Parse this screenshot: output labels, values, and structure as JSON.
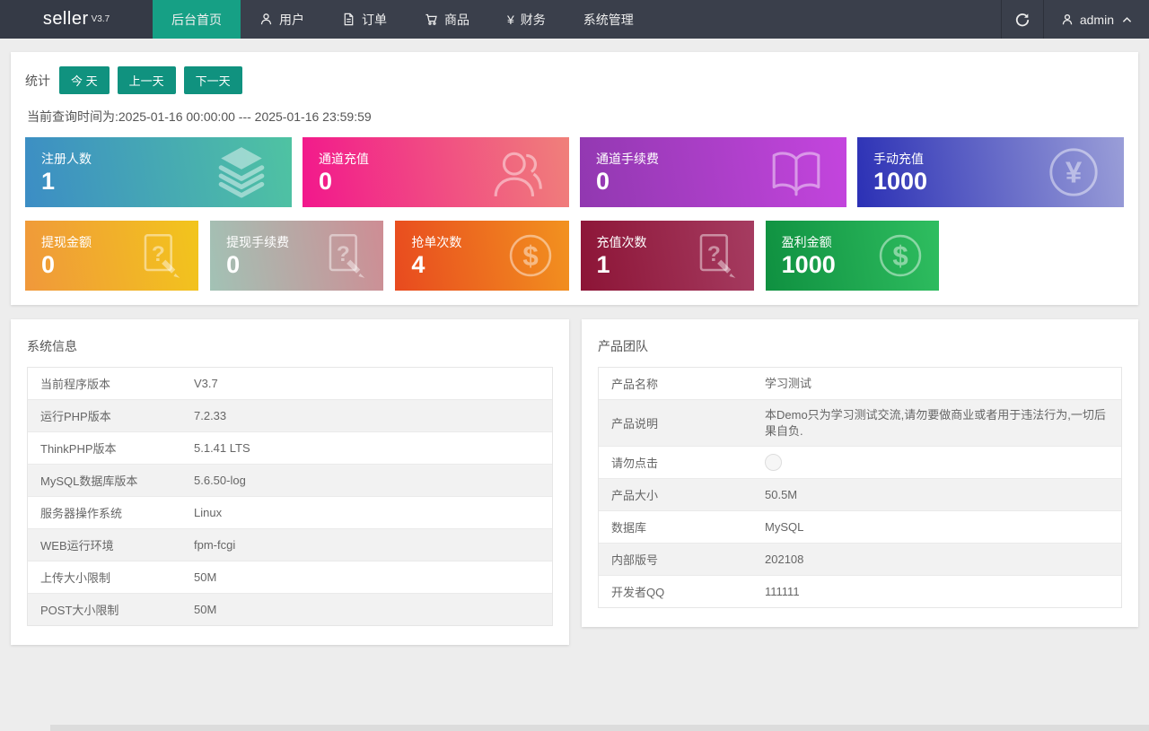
{
  "navbar": {
    "logo": "seller",
    "logo_version": "V3.7",
    "menu": [
      {
        "key": "home",
        "label": "后台首页",
        "icon": null,
        "active": true
      },
      {
        "key": "users",
        "label": "用户",
        "icon": "user",
        "active": false
      },
      {
        "key": "orders",
        "label": "订单",
        "icon": "document",
        "active": false
      },
      {
        "key": "goods",
        "label": "商品",
        "icon": "cart",
        "active": false
      },
      {
        "key": "finance",
        "label": "财务",
        "icon": "yen",
        "active": false
      },
      {
        "key": "system",
        "label": "系统管理",
        "icon": null,
        "active": false
      }
    ],
    "username": "admin"
  },
  "stats": {
    "label": "统计",
    "buttons": [
      {
        "key": "today",
        "label": "今 天"
      },
      {
        "key": "prev-day",
        "label": "上一天"
      },
      {
        "key": "next-day",
        "label": "下一天"
      }
    ],
    "query_time": "当前查询时间为:2025-01-16 00:00:00 --- 2025-01-16 23:59:59",
    "cards_row1": [
      {
        "key": "register-count",
        "label": "注册人数",
        "value": "1",
        "icon": "layers",
        "gradient": [
          "#3C8DC5",
          "#4FC3A2"
        ]
      },
      {
        "key": "channel-recharge",
        "label": "通道充值",
        "value": "0",
        "icon": "users",
        "gradient": [
          "#F2178C",
          "#F0807A"
        ]
      },
      {
        "key": "channel-fee",
        "label": "通道手续费",
        "value": "0",
        "icon": "book",
        "gradient": [
          "#9138B0",
          "#C445DE"
        ]
      },
      {
        "key": "manual-recharge",
        "label": "手动充值",
        "value": "1000",
        "icon": "yen-circle",
        "gradient": [
          "#2B30B5",
          "#9A9ED8"
        ]
      }
    ],
    "cards_row2": [
      {
        "key": "withdraw-amount",
        "label": "提现金额",
        "value": "0",
        "icon": "file-question",
        "gradient": [
          "#F0983B",
          "#F2C51C"
        ]
      },
      {
        "key": "withdraw-fee",
        "label": "提现手续费",
        "value": "0",
        "icon": "file-question",
        "gradient": [
          "#A2C2B5",
          "#CE8D94"
        ]
      },
      {
        "key": "grab-order-count",
        "label": "抢单次数",
        "value": "4",
        "icon": "dollar-circle",
        "gradient": [
          "#E84A1F",
          "#F2921F"
        ]
      },
      {
        "key": "recharge-count",
        "label": "充值次数",
        "value": "1",
        "icon": "file-question",
        "gradient": [
          "#8C1436",
          "#A63C61"
        ]
      },
      {
        "key": "profit-amount",
        "label": "盈利金额",
        "value": "1000",
        "icon": "dollar-circle",
        "gradient": [
          "#0F9040",
          "#2FBE60"
        ]
      }
    ]
  },
  "system_info": {
    "title": "系统信息",
    "rows": [
      {
        "label": "当前程序版本",
        "value": "V3.7"
      },
      {
        "label": "运行PHP版本",
        "value": "7.2.33"
      },
      {
        "label": "ThinkPHP版本",
        "value": "5.1.41 LTS"
      },
      {
        "label": "MySQL数据库版本",
        "value": "5.6.50-log"
      },
      {
        "label": "服务器操作系统",
        "value": "Linux"
      },
      {
        "label": "WEB运行环境",
        "value": "fpm-fcgi"
      },
      {
        "label": "上传大小限制",
        "value": "50M"
      },
      {
        "label": "POST大小限制",
        "value": "50M"
      }
    ]
  },
  "product_team": {
    "title": "产品团队",
    "rows": [
      {
        "label": "产品名称",
        "value": "学习测试"
      },
      {
        "label": "产品说明",
        "value": "本Demo只为学习测试交流,请勿要做商业或者用于违法行为,一切后果自负."
      },
      {
        "label": "请勿点击",
        "value": "",
        "icon": "badge"
      },
      {
        "label": "产品大小",
        "value": "50.5M"
      },
      {
        "label": "数据库",
        "value": "MySQL"
      },
      {
        "label": "内部版号",
        "value": "202108"
      },
      {
        "label": "开发者QQ",
        "value": "111111"
      }
    ]
  },
  "colors": {
    "navbar_bg": "#3A3F4B",
    "nav_active": "#16A085",
    "stat_button": "#10927F",
    "page_bg": "#EDEDED"
  }
}
